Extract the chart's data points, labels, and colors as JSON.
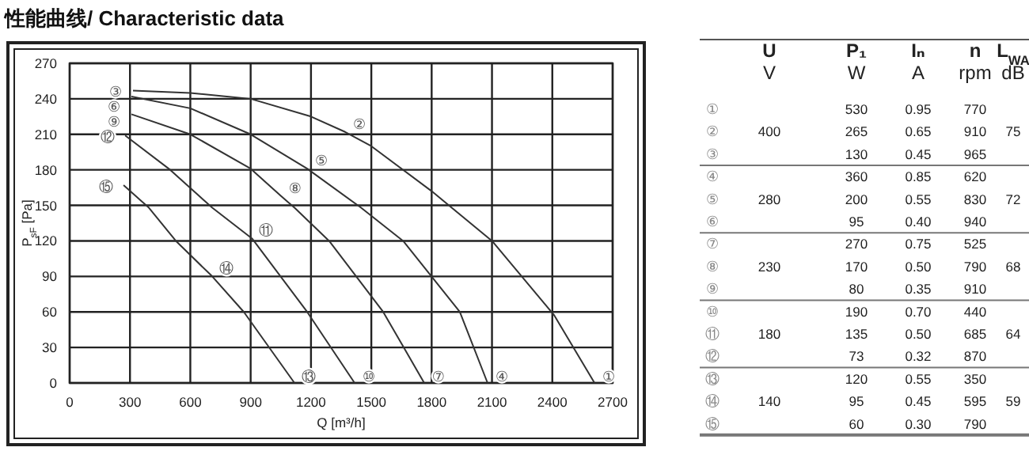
{
  "chart_data": {
    "type": "line",
    "title": "性能曲线/ Characteristic data",
    "xlabel": "Q [m³/h]",
    "ylabel": "P$_{sF}$ [Pa]",
    "xlim": [
      0,
      2700
    ],
    "ylim": [
      0,
      270
    ],
    "xticks": [
      0,
      300,
      600,
      900,
      1200,
      1500,
      1800,
      2100,
      2400,
      2700
    ],
    "yticks": [
      0,
      30,
      60,
      90,
      120,
      150,
      180,
      210,
      240,
      270
    ],
    "grid": true,
    "series": [
      {
        "color": "#333333",
        "x": [
          315,
          600,
          900,
          1200,
          1370,
          1500,
          1800,
          2100,
          2410,
          2610
        ],
        "values": [
          247,
          245,
          240,
          225,
          212,
          200,
          162,
          120,
          57,
          0
        ]
      },
      {
        "color": "#333333",
        "x": [
          307,
          600,
          900,
          1181,
          1449,
          1658,
          1940,
          2078
        ],
        "values": [
          242,
          232,
          210,
          181,
          148,
          120,
          60,
          0
        ]
      },
      {
        "color": "#333333",
        "x": [
          307,
          600,
          900,
          1050,
          1118,
          1290,
          1559,
          1763
        ],
        "values": [
          227,
          210,
          181,
          158,
          148,
          120,
          60,
          0
        ]
      },
      {
        "color": "#333333",
        "x": [
          276,
          500,
          709,
          907,
          1181,
          1417
        ],
        "values": [
          209,
          180,
          148,
          122,
          60,
          0
        ]
      },
      {
        "color": "#333333",
        "x": [
          268,
          394,
          528,
          709,
          866,
          1118
        ],
        "values": [
          167,
          148,
          120,
          90,
          60,
          0
        ]
      }
    ],
    "annotations": [
      {
        "text": "①",
        "x": 2610,
        "y": 0
      },
      {
        "text": "②",
        "x": 1370,
        "y": 212
      },
      {
        "text": "③",
        "x": 315,
        "y": 247
      },
      {
        "text": "④",
        "x": 2078,
        "y": 0
      },
      {
        "text": "⑤",
        "x": 1181,
        "y": 181
      },
      {
        "text": "⑥",
        "x": 307,
        "y": 242
      },
      {
        "text": "⑦",
        "x": 1763,
        "y": 0
      },
      {
        "text": "⑧",
        "x": 1050,
        "y": 158
      },
      {
        "text": "⑨",
        "x": 307,
        "y": 227
      },
      {
        "text": "⑩",
        "x": 1417,
        "y": 0
      },
      {
        "text": "⑪",
        "x": 907,
        "y": 122
      },
      {
        "text": "⑫",
        "x": 276,
        "y": 209
      },
      {
        "text": "⑬",
        "x": 1118,
        "y": 0
      },
      {
        "text": "⑭",
        "x": 709,
        "y": 90
      },
      {
        "text": "⑮",
        "x": 268,
        "y": 167
      },
      "U",
      "V",
      "P₁",
      "W",
      "Iₙ",
      "A",
      "n",
      "rpm",
      "L$_{WA}$",
      "dB",
      "400",
      "75",
      "①",
      "530",
      "0.95",
      "770",
      "②",
      "265",
      "0.65",
      "910",
      "③",
      "130",
      "0.45",
      "965",
      "280",
      "72",
      "④",
      "360",
      "0.85",
      "620",
      "⑤",
      "200",
      "0.55",
      "830",
      "⑥",
      "95",
      "0.40",
      "940",
      "230",
      "68",
      "⑦",
      "270",
      "0.75",
      "525",
      "⑧",
      "170",
      "0.50",
      "790",
      "⑨",
      "80",
      "0.35",
      "910",
      "180",
      "64",
      "⑩",
      "190",
      "0.70",
      "440",
      "⑪",
      "135",
      "0.50",
      "685",
      "⑫",
      "73",
      "0.32",
      "870",
      "140",
      "59",
      "⑬",
      "120",
      "0.55",
      "350",
      "⑭",
      "95",
      "0.45",
      "595",
      "⑮",
      "60",
      "0.30",
      "790"
    ]
  }
}
